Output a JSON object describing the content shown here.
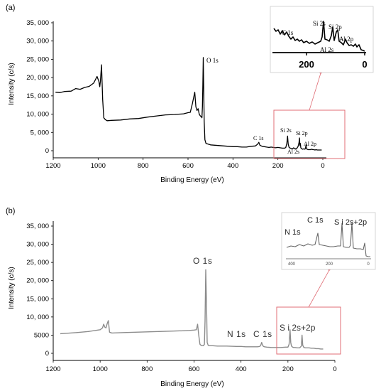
{
  "chart_data": [
    {
      "type": "line",
      "panel_label": "(a)",
      "xlabel": "Binding Energy (eV)",
      "ylabel": "Intensity (c/s)",
      "xlim": [
        1200,
        0
      ],
      "ylim": [
        0,
        35000
      ],
      "x_ticks": [
        "1200",
        "1000",
        "800",
        "600",
        "400",
        "200",
        "0"
      ],
      "y_ticks": [
        "0",
        "5, 000",
        "10, 000",
        "15, 000",
        "20, 000",
        "25, 000",
        "30, 000",
        "35, 000"
      ],
      "color": "#000000",
      "series": [
        {
          "x": [
            1190,
            1170,
            1150,
            1120,
            1100,
            1080,
            1060,
            1040,
            1020,
            1005,
            997,
            993,
            990,
            985,
            980,
            975,
            968,
            960,
            940,
            900,
            860,
            820,
            780,
            740,
            700,
            660,
            620,
            600,
            590,
            580,
            570,
            565,
            560,
            555,
            550,
            545,
            541,
            538,
            536,
            534,
            532,
            530,
            528,
            525,
            520,
            510,
            500,
            480,
            460,
            440,
            420,
            400,
            380,
            360,
            340,
            320,
            300,
            290,
            285,
            280,
            270,
            260,
            250,
            240,
            230,
            220,
            210,
            200,
            190,
            180,
            170,
            165,
            160,
            157,
            154,
            150,
            145,
            140,
            135,
            130,
            125,
            120,
            115,
            110,
            106,
            104,
            102,
            100,
            98,
            95,
            90,
            85,
            80,
            77,
            75,
            73,
            70,
            65,
            60,
            55,
            50,
            45,
            40,
            35,
            30,
            25,
            20,
            15,
            10,
            5
          ],
          "y": [
            16000,
            15900,
            16200,
            16300,
            17000,
            16800,
            17300,
            17600,
            18500,
            20300,
            19000,
            17500,
            19000,
            23500,
            14000,
            9000,
            8500,
            8200,
            8300,
            8400,
            8700,
            8800,
            9200,
            9500,
            9800,
            9900,
            10100,
            10400,
            10500,
            13000,
            16000,
            12000,
            11000,
            11500,
            10000,
            9500,
            9300,
            9000,
            12000,
            18000,
            25500,
            16000,
            8000,
            3000,
            2000,
            1800,
            1600,
            1500,
            1400,
            1300,
            1200,
            1100,
            1100,
            1000,
            1000,
            1200,
            1300,
            1800,
            2300,
            1500,
            1200,
            1100,
            1000,
            900,
            1000,
            900,
            800,
            900,
            800,
            700,
            700,
            900,
            2000,
            4000,
            1800,
            900,
            700,
            600,
            500,
            800,
            600,
            500,
            700,
            1200,
            2200,
            3500,
            1500,
            2000,
            800,
            600,
            400,
            500,
            400,
            700,
            1600,
            600,
            400,
            300,
            300,
            300,
            400,
            300,
            300,
            200,
            300,
            200,
            200,
            200,
            200,
            200
          ]
        }
      ],
      "annotations": [
        "O 1s",
        "C 1s",
        "Si 2s",
        "Si 2p",
        "Al 2p",
        "Al 2s"
      ],
      "inset": {
        "xlim": [
          300,
          0
        ],
        "x_ticks": [
          "200",
          "0"
        ],
        "annotations": [
          "C 1s",
          "Si 2s",
          "Si 2p",
          "Al 2p",
          "Al 2s"
        ]
      }
    },
    {
      "type": "line",
      "panel_label": "(b)",
      "xlabel": "Binding Energy (eV)",
      "ylabel": "Intensity (c/s)",
      "xlim": [
        1200,
        0
      ],
      "ylim": [
        0,
        35000
      ],
      "x_ticks": [
        "1200",
        "1000",
        "800",
        "600",
        "400",
        "200",
        "0"
      ],
      "y_ticks": [
        "0",
        "5000",
        "10, 000",
        "15, 000",
        "20, 000",
        "25, 000",
        "30, 000",
        "35, 000"
      ],
      "color": "#8c8c8c",
      "series": [
        {
          "x": [
            1170,
            1100,
            1050,
            1000,
            990,
            985,
            980,
            975,
            970,
            965,
            960,
            950,
            900,
            850,
            800,
            750,
            700,
            650,
            620,
            600,
            590,
            585,
            580,
            575,
            570,
            565,
            560,
            556,
            553,
            550,
            546,
            544,
            540,
            535,
            530,
            520,
            500,
            460,
            420,
            400,
            380,
            350,
            330,
            320,
            316,
            312,
            308,
            304,
            300,
            290,
            270,
            250,
            230,
            210,
            200,
            195,
            191,
            188,
            185,
            180,
            175,
            170,
            160,
            150,
            143,
            140,
            137,
            132,
            125,
            110,
            100,
            90,
            80,
            70,
            60,
            50
          ],
          "y": [
            5400,
            5700,
            6000,
            6500,
            7000,
            8000,
            7200,
            7000,
            8200,
            9000,
            5800,
            5600,
            5700,
            5800,
            5900,
            6000,
            6100,
            6200,
            6300,
            6400,
            6500,
            8000,
            5000,
            2500,
            2200,
            2100,
            2100,
            2500,
            9000,
            23000,
            10000,
            3000,
            2200,
            2100,
            2100,
            2100,
            2000,
            2000,
            1900,
            1900,
            1800,
            1800,
            1800,
            1900,
            2200,
            3000,
            2200,
            1900,
            1800,
            1700,
            1600,
            1600,
            1600,
            1700,
            1700,
            2500,
            6500,
            3000,
            2000,
            1700,
            1600,
            1600,
            1500,
            1500,
            2000,
            5000,
            2200,
            1600,
            1500,
            1500,
            1400,
            1400,
            1300,
            1300,
            1200,
            1200
          ]
        }
      ],
      "annotations": [
        "O 1s",
        "N 1s",
        "C 1s",
        "S i  2s+2p"
      ],
      "inset": {
        "xlim": [
          400,
          0
        ],
        "x_ticks": [
          "400",
          "200",
          "0"
        ],
        "annotations": [
          "N 1s",
          "C 1s",
          "S i  2s+2p"
        ]
      }
    }
  ],
  "colors": {
    "highlight": "#e06c74",
    "axis": "#000000",
    "grey_line": "#8c8c8c"
  }
}
